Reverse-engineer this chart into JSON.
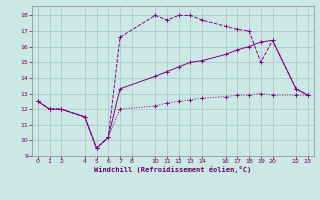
{
  "background_color": "#cce8e5",
  "grid_color": "#aaccca",
  "line_color": "#800080",
  "xlabel": "Windchill (Refroidissement éolien,°C)",
  "xlim": [
    -0.5,
    23.5
  ],
  "ylim": [
    9,
    18.6
  ],
  "yticks": [
    9,
    10,
    11,
    12,
    13,
    14,
    15,
    16,
    17,
    18
  ],
  "xticks": [
    0,
    1,
    2,
    4,
    5,
    6,
    7,
    8,
    10,
    11,
    12,
    13,
    14,
    16,
    17,
    18,
    19,
    20,
    22,
    23
  ],
  "line1_x": [
    0,
    1,
    2,
    4,
    5,
    6,
    7,
    10,
    11,
    12,
    13,
    14,
    16,
    17,
    18,
    19,
    20,
    22,
    23
  ],
  "line1_y": [
    12.5,
    12.0,
    12.0,
    11.5,
    9.5,
    10.2,
    16.6,
    18.0,
    17.7,
    18.0,
    18.0,
    17.7,
    17.3,
    17.1,
    17.0,
    15.0,
    16.4,
    13.3,
    12.9
  ],
  "line2_x": [
    0,
    1,
    2,
    4,
    5,
    6,
    7,
    10,
    11,
    12,
    13,
    14,
    16,
    17,
    18,
    19,
    20,
    22,
    23
  ],
  "line2_y": [
    12.5,
    12.0,
    12.0,
    11.5,
    9.5,
    10.2,
    13.3,
    14.1,
    14.4,
    14.7,
    15.0,
    15.1,
    15.5,
    15.8,
    16.0,
    16.3,
    16.4,
    13.3,
    12.9
  ],
  "line3_x": [
    0,
    1,
    2,
    4,
    5,
    6,
    7,
    10,
    11,
    12,
    13,
    14,
    16,
    17,
    18,
    19,
    20,
    22,
    23
  ],
  "line3_y": [
    12.5,
    12.0,
    12.0,
    11.5,
    9.5,
    10.2,
    12.0,
    12.2,
    12.4,
    12.5,
    12.6,
    12.7,
    12.8,
    12.9,
    12.9,
    13.0,
    12.9,
    12.9,
    12.9
  ]
}
